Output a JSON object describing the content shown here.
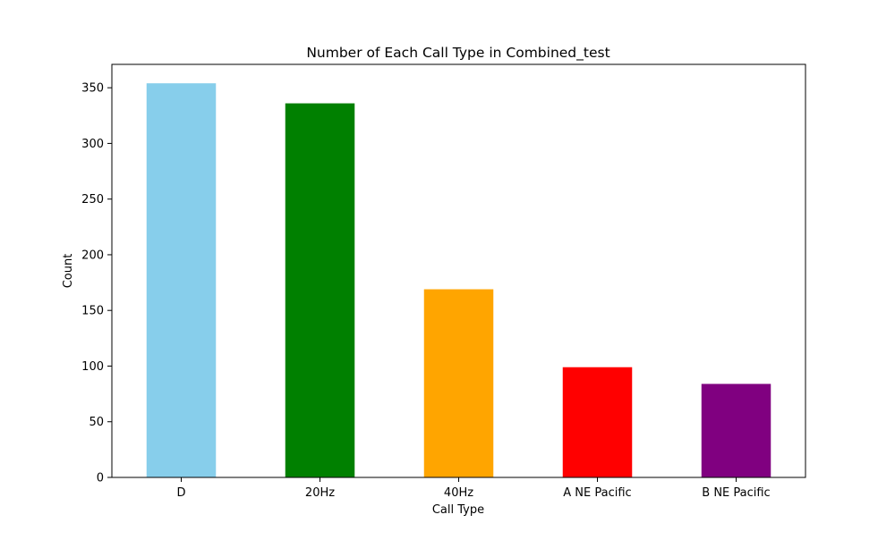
{
  "chart_data": {
    "type": "bar",
    "title": "Number of Each Call Type in Combined_test",
    "xlabel": "Call Type",
    "ylabel": "Count",
    "categories": [
      "D",
      "20Hz",
      "40Hz",
      "A NE Pacific",
      "B NE Pacific"
    ],
    "values": [
      354,
      336,
      169,
      99,
      84
    ],
    "colors": [
      "#87ceeb",
      "#008000",
      "#ffa500",
      "#ff0000",
      "#800080"
    ],
    "ylim": [
      0,
      371
    ],
    "yticks": [
      0,
      50,
      100,
      150,
      200,
      250,
      300,
      350
    ],
    "grid": false,
    "legend": "none"
  }
}
